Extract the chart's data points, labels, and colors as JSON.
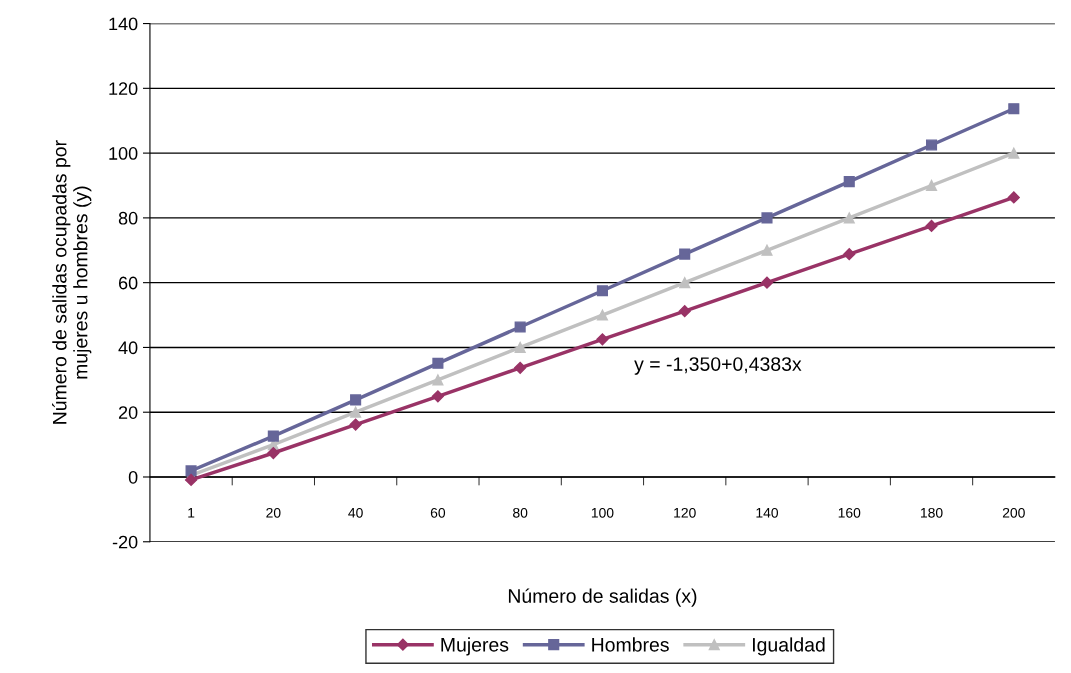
{
  "chart_data": {
    "type": "line",
    "xlabel": "Número de salidas (x)",
    "ylabel": "Número de salidas ocupadas por\nmujeres u hombres (y)",
    "categories": [
      "1",
      "20",
      "40",
      "60",
      "80",
      "100",
      "120",
      "140",
      "160",
      "180",
      "200"
    ],
    "series": [
      {
        "name": "Mujeres",
        "color": "#993366",
        "marker": "diamond",
        "values": [
          -0.9,
          7.4,
          16.2,
          24.9,
          33.7,
          42.5,
          51.2,
          60.0,
          68.8,
          77.5,
          86.3
        ]
      },
      {
        "name": "Hombres",
        "color": "#666699",
        "marker": "square",
        "values": [
          1.9,
          12.6,
          23.8,
          35.1,
          46.3,
          57.5,
          68.8,
          80.0,
          91.2,
          102.5,
          113.7
        ]
      },
      {
        "name": "Igualdad",
        "color": "#c0c0c0",
        "marker": "triangle",
        "values": [
          0.5,
          10,
          20,
          30,
          40,
          50,
          60,
          70,
          80,
          90,
          100
        ]
      }
    ],
    "ylim": [
      -20,
      140
    ],
    "yticks": [
      -20,
      0,
      20,
      40,
      60,
      80,
      100,
      120,
      140
    ],
    "grid": "y",
    "legend": "bottom",
    "line_style": "solid",
    "annotations": [
      "y = -1,350+0,4383x"
    ]
  }
}
